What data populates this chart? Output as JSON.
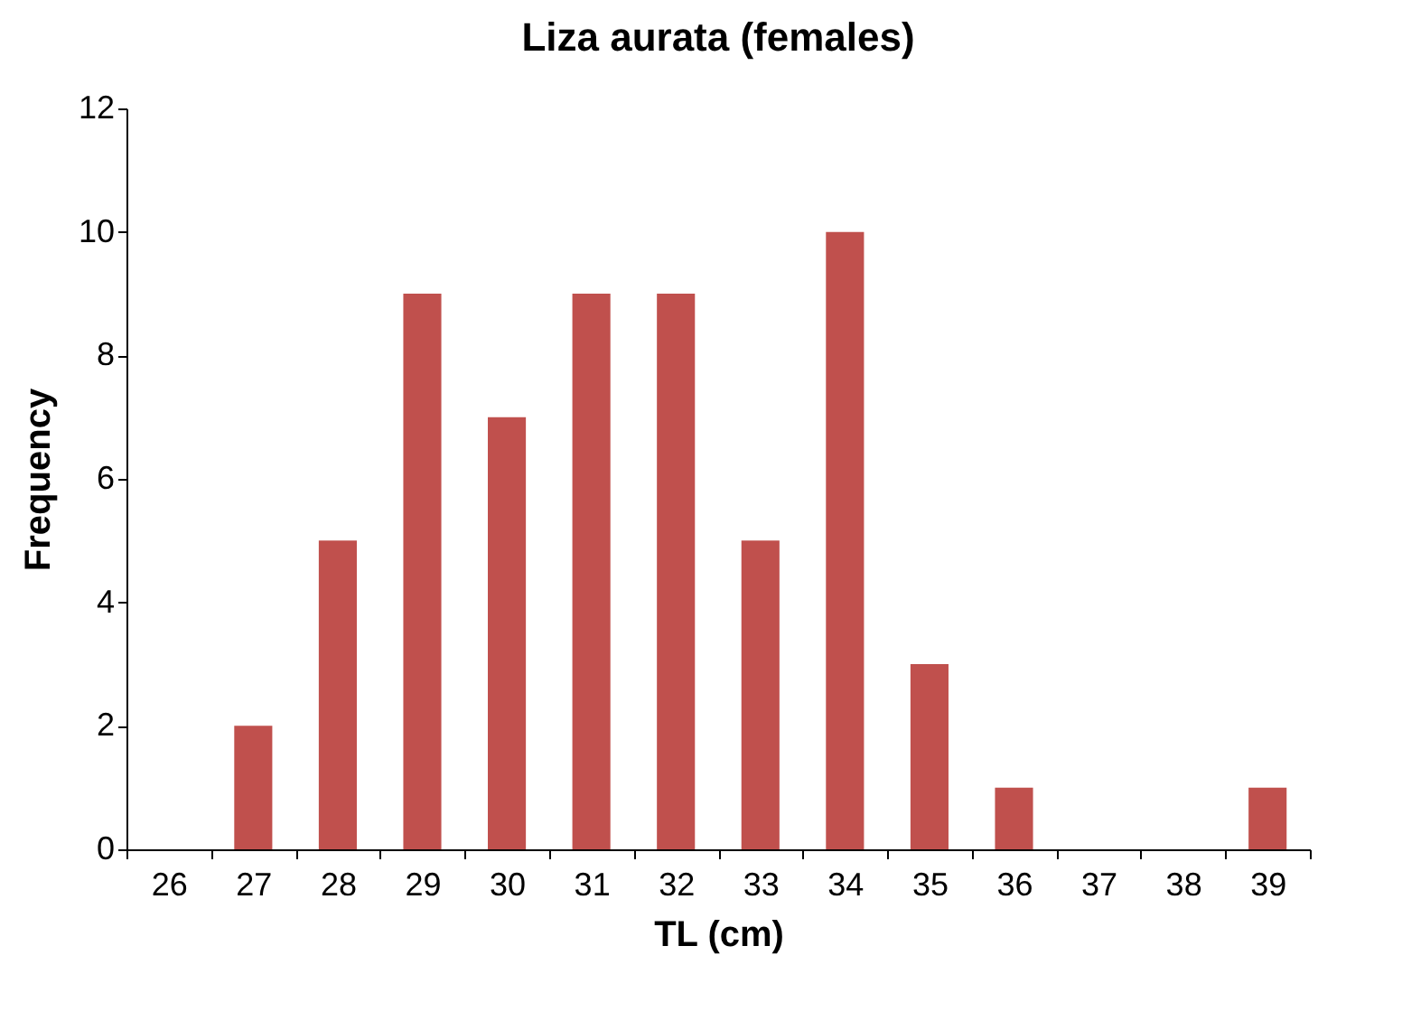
{
  "chart_data": {
    "type": "bar",
    "title": "Liza aurata (females)",
    "xlabel": "TL (cm)",
    "ylabel": "Frequency",
    "categories": [
      "26",
      "27",
      "28",
      "29",
      "30",
      "31",
      "32",
      "33",
      "34",
      "35",
      "36",
      "37",
      "38",
      "39"
    ],
    "values": [
      0,
      2,
      5,
      9,
      7,
      9,
      9,
      5,
      10,
      3,
      1,
      0,
      0,
      1
    ],
    "color": "#c0504d",
    "ylim": [
      0,
      12
    ],
    "yticks": [
      0,
      2,
      4,
      6,
      8,
      10,
      12
    ],
    "grid": false
  }
}
